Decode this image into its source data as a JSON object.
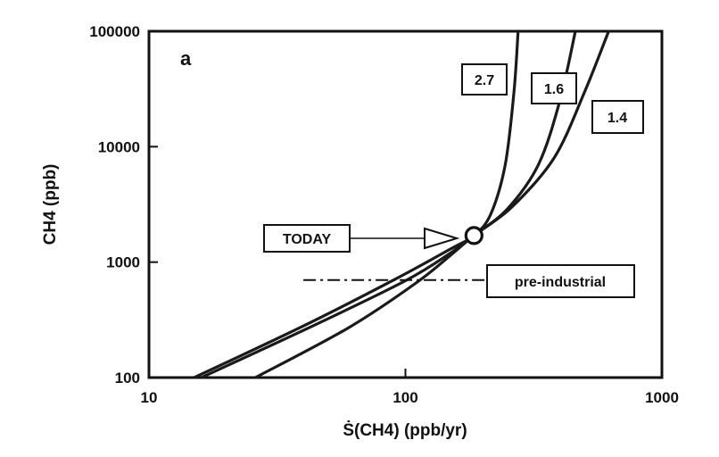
{
  "chart_data": {
    "type": "line",
    "panel_label": "a",
    "xlabel": "Ṡ(CH4)  (ppb/yr)",
    "ylabel": "CH4  (ppb)",
    "xscale": "log",
    "yscale": "log",
    "xlim": [
      10,
      1000
    ],
    "ylim": [
      100,
      100000
    ],
    "x_ticks": [
      10,
      100,
      1000
    ],
    "x_tick_labels": [
      "10",
      "100",
      "1000"
    ],
    "y_ticks": [
      100,
      1000,
      10000,
      100000
    ],
    "y_tick_labels": [
      "100",
      "1000",
      "10000",
      "100000"
    ],
    "series": [
      {
        "name": "2.7",
        "x": [
          15,
          40,
          90,
          150,
          185,
          215,
          245,
          265,
          275
        ],
        "y": [
          100,
          280,
          700,
          1300,
          1700,
          2600,
          7000,
          30000,
          100000
        ]
      },
      {
        "name": "1.6",
        "x": [
          16,
          45,
          100,
          150,
          185,
          250,
          330,
          400,
          460
        ],
        "y": [
          100,
          290,
          690,
          1200,
          1700,
          2900,
          7000,
          25000,
          100000
        ]
      },
      {
        "name": "1.4",
        "x": [
          26,
          60,
          110,
          155,
          185,
          260,
          380,
          500,
          620
        ],
        "y": [
          100,
          270,
          660,
          1220,
          1700,
          3000,
          8000,
          30000,
          100000
        ]
      }
    ],
    "today_point": {
      "x": 185,
      "y": 1700
    },
    "preindustrial_line": {
      "y": 700,
      "x_range": [
        40,
        260
      ]
    },
    "annotations": {
      "today": "TODAY",
      "preindustrial": "pre-industrial"
    }
  }
}
